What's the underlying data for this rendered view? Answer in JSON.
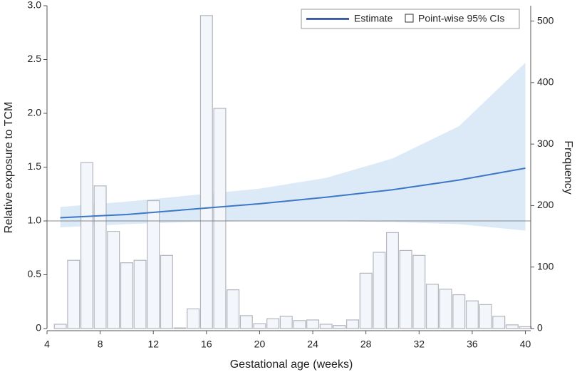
{
  "chart_data": {
    "type": "line",
    "xlabel": "Gestational age (weeks)",
    "ylabel": "Relative exposure to TCM",
    "y2label": "Frequency",
    "x": [
      5,
      10,
      15,
      20,
      25,
      30,
      35,
      40
    ],
    "series": [
      {
        "name": "Estimate",
        "color": "#3d78c6",
        "legend_color": "#1f3f8f",
        "values": [
          1.03,
          1.06,
          1.11,
          1.16,
          1.22,
          1.29,
          1.38,
          1.49
        ]
      }
    ],
    "ci": {
      "name": "Point-wise 95% CIs",
      "color": "#dce9f6",
      "lower": [
        0.94,
        0.97,
        0.99,
        1.0,
        1.0,
        0.99,
        0.97,
        0.91
      ],
      "upper": [
        1.13,
        1.18,
        1.24,
        1.3,
        1.4,
        1.58,
        1.88,
        2.47
      ]
    },
    "bars": {
      "type": "bar",
      "axis": "y2",
      "color": "#f3f6fb",
      "edge": "#b4b6bf",
      "x": [
        5,
        6,
        7,
        8,
        9,
        10,
        11,
        12,
        13,
        14,
        15,
        16,
        17,
        18,
        19,
        20,
        21,
        22,
        23,
        24,
        25,
        26,
        27,
        28,
        29,
        30,
        31,
        32,
        33,
        34,
        35,
        36,
        37,
        38,
        39,
        40
      ],
      "values": [
        7,
        111,
        270,
        232,
        158,
        107,
        111,
        208,
        119,
        1,
        32,
        509,
        358,
        63,
        21,
        8,
        16,
        20,
        13,
        14,
        7,
        5,
        14,
        90,
        124,
        156,
        127,
        119,
        72,
        64,
        55,
        45,
        39,
        20,
        6,
        3
      ]
    },
    "refline": 1,
    "xlim": [
      4,
      40.4
    ],
    "xticks": [
      4,
      8,
      12,
      16,
      20,
      24,
      28,
      32,
      36,
      40
    ],
    "ylim": [
      0,
      3
    ],
    "yticks": [
      0,
      0.5,
      {
        "value": 1,
        "label": "1.0"
      },
      1.5,
      {
        "value": 2,
        "label": "2.0"
      },
      2.5,
      {
        "value": 3,
        "label": "3.0"
      }
    ],
    "y2lim": [
      0,
      525
    ],
    "y2ticks": [
      0,
      100,
      200,
      300,
      400,
      500
    ],
    "legend": "upper right"
  }
}
